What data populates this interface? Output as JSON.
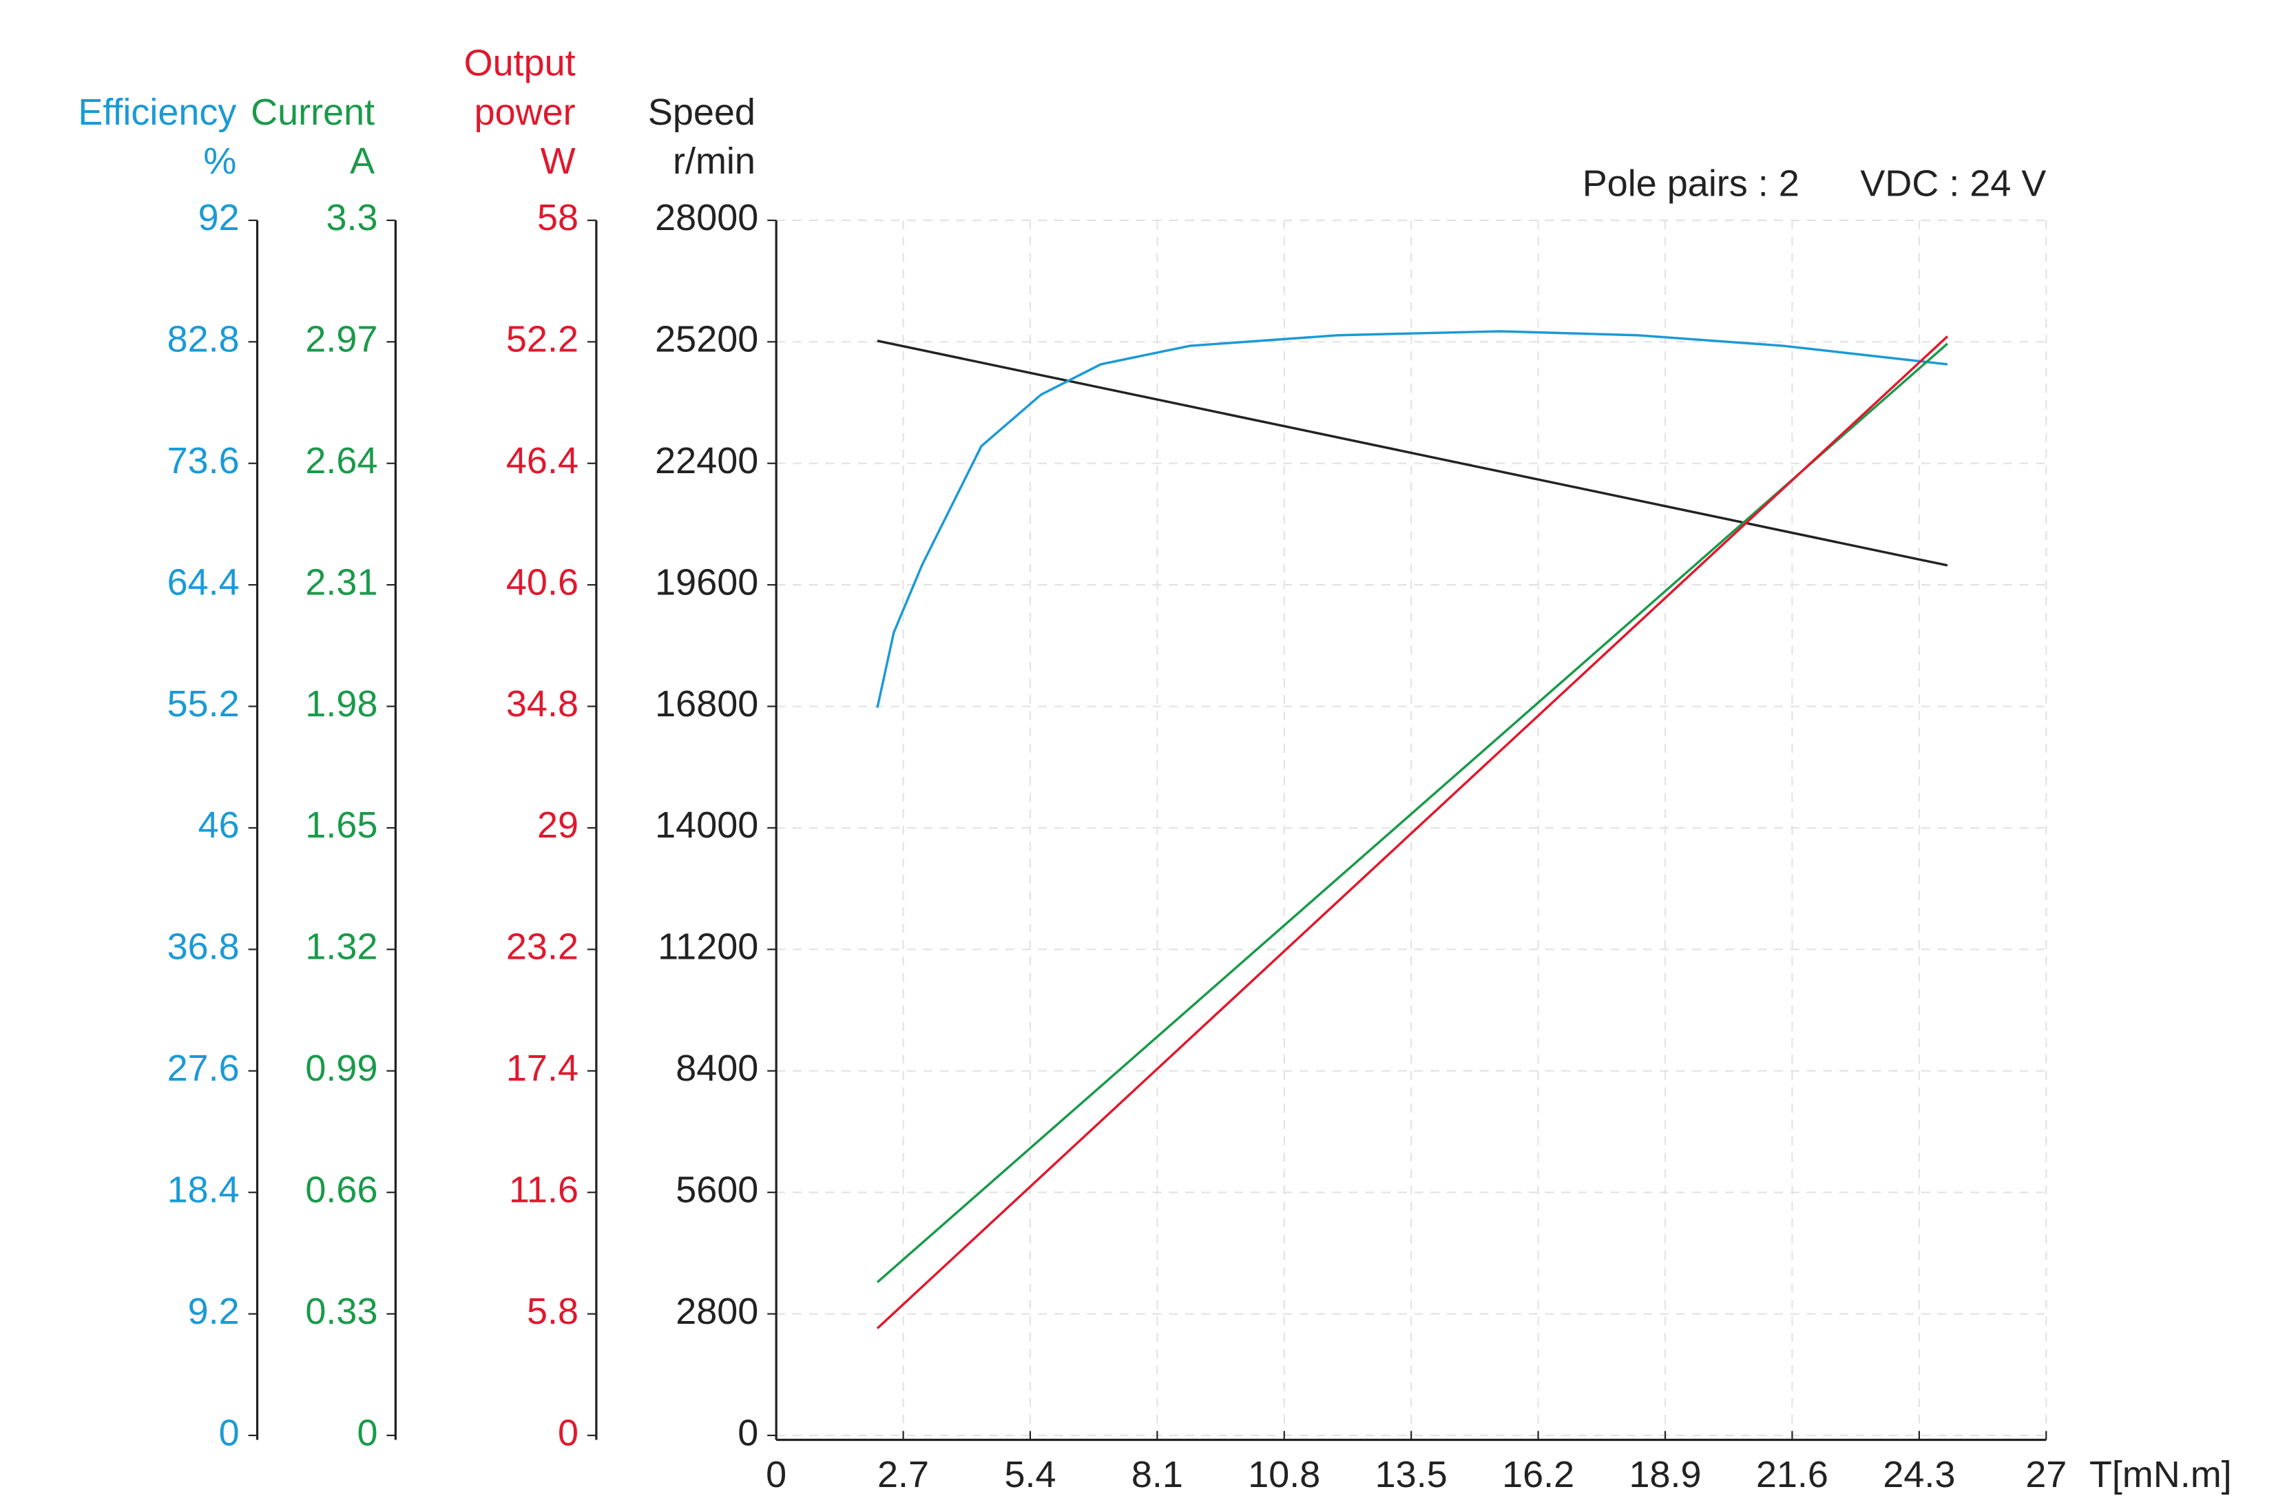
{
  "chart_data": {
    "type": "line",
    "annotations": [
      "Pole pairs : 2",
      "VDC : 24 V"
    ],
    "xlabel": "T[mN.m]",
    "xlim": [
      0,
      27
    ],
    "xticks": [
      0,
      2.7,
      5.4,
      8.1,
      10.8,
      13.5,
      16.2,
      18.9,
      21.6,
      24.3,
      27
    ],
    "grid": true,
    "y_axes": {
      "y4": {
        "title": [
          "Efficiency"
        ],
        "unit": "%",
        "color": "#1a9ad6",
        "lim": [
          0,
          92
        ],
        "ticks": [
          0,
          9.2,
          18.4,
          27.6,
          36.8,
          46,
          55.2,
          64.4,
          73.6,
          82.8,
          92
        ]
      },
      "y3": {
        "title": [
          "Current"
        ],
        "unit": "A",
        "color": "#1a9a4a",
        "lim": [
          0,
          3.3
        ],
        "ticks": [
          0,
          0.33,
          0.66,
          0.99,
          1.32,
          1.65,
          1.98,
          2.31,
          2.64,
          2.97,
          3.3
        ]
      },
      "y2": {
        "title": [
          "Output",
          "power"
        ],
        "unit": "W",
        "color": "#e0182d",
        "lim": [
          0,
          58
        ],
        "ticks": [
          0,
          5.8,
          11.6,
          17.4,
          23.2,
          29,
          34.8,
          40.6,
          46.4,
          52.2,
          58
        ]
      },
      "y": {
        "title": [
          "Speed"
        ],
        "unit": "r/min",
        "color": "#222222",
        "lim": [
          0,
          28000
        ],
        "ticks": [
          0,
          2800,
          5600,
          8400,
          11200,
          14000,
          16800,
          19600,
          22400,
          25200,
          28000
        ]
      }
    },
    "series": [
      {
        "axis": "y",
        "color": "#222222",
        "x": [
          2.15,
          24.9
        ],
        "values": [
          25224,
          20049
        ]
      },
      {
        "axis": "y4",
        "color": "#1a9ad6",
        "x": [
          2.15,
          2.5,
          3.1,
          4.36,
          5.63,
          6.9,
          8.8,
          11.95,
          15.4,
          18.3,
          21.4,
          24.9
        ],
        "values": [
          55.1,
          60.8,
          65.9,
          74.9,
          78.8,
          81.1,
          82.5,
          83.3,
          83.6,
          83.3,
          82.5,
          81.1
        ]
      },
      {
        "axis": "y3",
        "color": "#1a9a4a",
        "x": [
          2.15,
          24.9
        ],
        "values": [
          0.416,
          2.965
        ]
      },
      {
        "axis": "y2",
        "color": "#e0182d",
        "x": [
          2.15,
          24.9
        ],
        "values": [
          5.11,
          52.46
        ]
      }
    ]
  }
}
